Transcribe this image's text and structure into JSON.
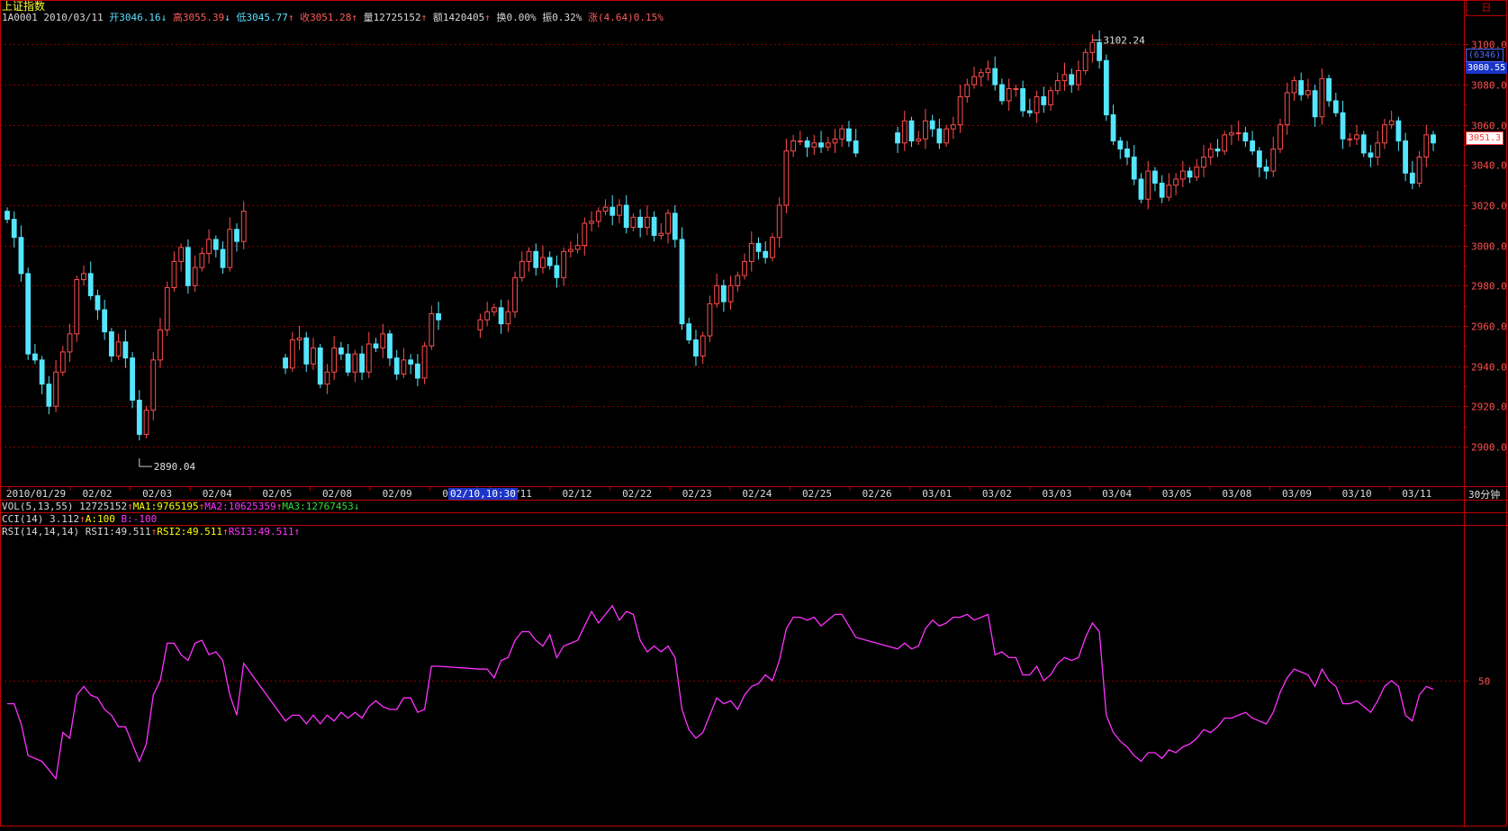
{
  "header": {
    "title": "上证指数",
    "code": "1A0001",
    "date": "2010/03/11",
    "open_label": "开",
    "open": "3046.16",
    "high_label": "高",
    "high": "3055.39",
    "low_label": "低",
    "low": "3045.77",
    "close_label": "收",
    "close": "3051.28",
    "volume_label": "量",
    "volume": "12725152",
    "amount_label": "额",
    "amount": "1420405",
    "turnover_label": "换",
    "turnover": "0.00%",
    "amplitude_label": "振",
    "amplitude": "0.32%",
    "change_label": "涨",
    "change": "(4.64)0.15%"
  },
  "indicators": {
    "vol": {
      "name": "VOL(5,13,55)",
      "value": "12725152",
      "ma1": "MA1:9765195",
      "ma2": "MA2:10625359",
      "ma3": "MA3:12767453"
    },
    "cci": {
      "name": "CCI(14)",
      "value": "3.112",
      "a": "A:100",
      "b": "B:-100"
    },
    "rsi": {
      "name": "RSI(14,14,14)",
      "rsi1": "RSI1:49.511",
      "rsi2": "RSI2:49.511",
      "rsi3": "RSI3:49.511"
    }
  },
  "side": {
    "tab": "日",
    "period": "30分钟",
    "current_price": "3051.3",
    "cursor_price": "3080.55",
    "count": "(6346)"
  },
  "cursor_time": "02/10,10:30",
  "colors": {
    "up": "#ff4d4d",
    "down": "#55e6ff",
    "rsi": "#ff33ff",
    "grid": "#8b0000",
    "frame": "#c00000",
    "axis_text": "#ff5050"
  },
  "chart_data": {
    "type": "candlestick",
    "title": "上证指数",
    "ylim": [
      2895,
      3106
    ],
    "yticks": [
      2900,
      2920,
      2940,
      2960,
      2980,
      3000,
      3020,
      3040,
      3060,
      3080,
      3100
    ],
    "ytick_labels": [
      "2900.0",
      "2920.0",
      "2940.0",
      "2960.0",
      "2980.0",
      "3000.0",
      "3020.0",
      "3040.0",
      "3060.0",
      "3080.0",
      "3100.0"
    ],
    "xticks": [
      "2010/01/29",
      "02/02",
      "02/03",
      "02/04",
      "02/05",
      "02/08",
      "02/09",
      "02/10",
      "02/11",
      "02/12",
      "02/22",
      "02/23",
      "02/24",
      "02/25",
      "02/26",
      "03/01",
      "03/02",
      "03/03",
      "03/04",
      "03/05",
      "03/08",
      "03/09",
      "03/10",
      "03/11"
    ],
    "annotations": [
      {
        "text": "3102.24",
        "value": 3102.24
      },
      {
        "text": "2890.04",
        "value": 2890.04
      }
    ],
    "gaps_after": [
      34,
      57,
      112
    ],
    "closes": [
      3013,
      3004,
      2986,
      2946,
      2943,
      2931,
      2920,
      2937,
      2947,
      2956,
      2983,
      2986,
      2975,
      2968,
      2957,
      2945,
      2952,
      2944,
      2923,
      2906,
      2918,
      2943,
      2958,
      2979,
      2992,
      2999,
      2980,
      2989,
      2996,
      3003,
      2998,
      2989,
      3008,
      3002,
      3017,
      2939,
      2953,
      2954,
      2941,
      2949,
      2931,
      2937,
      2949,
      2946,
      2937,
      2946,
      2937,
      2951,
      2949,
      2956,
      2944,
      2936,
      2943,
      2941,
      2934,
      2950,
      2966,
      2963,
      2963,
      2967,
      2969,
      2961,
      2967,
      2984,
      2992,
      2997,
      2989,
      2994,
      2990,
      2984,
      2997,
      2998,
      3000,
      3011,
      3012,
      3017,
      3019,
      3015,
      3020,
      3009,
      3014,
      3009,
      3014,
      3005,
      3006,
      3016,
      3003,
      2961,
      2953,
      2945,
      2955,
      2971,
      2980,
      2972,
      2980,
      2985,
      2992,
      3001,
      2997,
      2994,
      3004,
      3020,
      3047,
      3052,
      3052,
      3049,
      3051,
      3049,
      3051,
      3053,
      3058,
      3052,
      3046,
      3051,
      3062,
      3052,
      3053,
      3062,
      3058,
      3051,
      3058,
      3060,
      3074,
      3080,
      3084,
      3086,
      3088,
      3080,
      3072,
      3078,
      3078,
      3067,
      3066,
      3074,
      3070,
      3077,
      3082,
      3085,
      3080,
      3087,
      3096,
      3101,
      3092,
      3065,
      3052,
      3048,
      3044,
      3033,
      3023,
      3037,
      3031,
      3024,
      3030,
      3033,
      3037,
      3034,
      3039,
      3044,
      3048,
      3047,
      3055,
      3056,
      3056,
      3052,
      3047,
      3039,
      3037,
      3048,
      3060,
      3076,
      3082,
      3075,
      3077,
      3064,
      3083,
      3072,
      3066,
      3053,
      3053,
      3055,
      3046,
      3044,
      3051,
      3060,
      3062,
      3052,
      3036,
      3031,
      3044,
      3055,
      3051
    ],
    "rsi": {
      "label": "RSI1",
      "ref_level": 50,
      "ref_label": "50",
      "ylim": [
        0,
        100
      ],
      "values": [
        42,
        42,
        35,
        24,
        23,
        22,
        19,
        16,
        32,
        30,
        45,
        48,
        45,
        44,
        40,
        38,
        34,
        34,
        28,
        22,
        28,
        45,
        50,
        63,
        63,
        59,
        57,
        63,
        64,
        59,
        60,
        57,
        45,
        38,
        56,
        36,
        38,
        38,
        35,
        38,
        35,
        38,
        36,
        39,
        37,
        39,
        37,
        41,
        43,
        41,
        40,
        40,
        44,
        44,
        39,
        40,
        55,
        55,
        54,
        54,
        51,
        57,
        58,
        64,
        67,
        67,
        64,
        62,
        66,
        58,
        62,
        63,
        64,
        69,
        74,
        70,
        73,
        76,
        71,
        74,
        73,
        64,
        60,
        62,
        60,
        62,
        58,
        40,
        33,
        30,
        32,
        38,
        44,
        42,
        43,
        40,
        45,
        48,
        49,
        52,
        50,
        57,
        68,
        72,
        72,
        71,
        72,
        69,
        71,
        73,
        73,
        69,
        65,
        61,
        63,
        61,
        62,
        68,
        71,
        69,
        70,
        72,
        72,
        73,
        71,
        72,
        73,
        59,
        60,
        58,
        58,
        52,
        52,
        55,
        50,
        52,
        56,
        58,
        57,
        58,
        65,
        70,
        67,
        38,
        32,
        29,
        27,
        24,
        22,
        25,
        25,
        23,
        26,
        25,
        27,
        28,
        30,
        33,
        32,
        34,
        37,
        37,
        38,
        39,
        37,
        36,
        35,
        39,
        46,
        51,
        54,
        53,
        52,
        48,
        54,
        50,
        48,
        42,
        42,
        43,
        41,
        39,
        43,
        48,
        50,
        48,
        38,
        36,
        45,
        48,
        47
      ]
    }
  }
}
